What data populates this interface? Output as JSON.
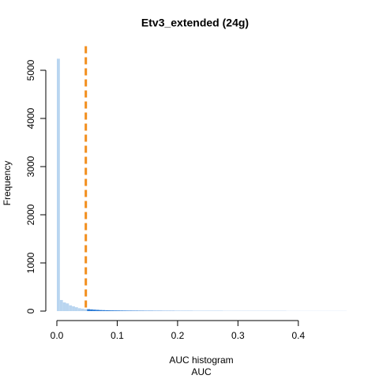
{
  "chart_data": {
    "type": "histogram",
    "title": "Etv3_extended (24g)",
    "xlabel": "AUC histogram",
    "subtitle": "AUC",
    "ylabel": "Frequency",
    "bins": [
      0,
      0.005,
      0.01,
      0.015,
      0.02,
      0.025,
      0.03,
      0.035,
      0.04,
      0.045,
      0.05,
      0.055,
      0.06,
      0.065,
      0.07,
      0.075,
      0.08,
      0.085,
      0.09,
      0.095,
      0.1,
      0.105,
      0.11,
      0.115,
      0.12,
      0.125,
      0.13,
      0.135,
      0.14,
      0.145,
      0.15,
      0.155,
      0.16,
      0.165,
      0.17,
      0.175,
      0.18,
      0.185,
      0.19,
      0.195,
      0.2,
      0.205,
      0.21,
      0.215,
      0.22,
      0.225,
      0.23,
      0.235,
      0.24,
      0.245,
      0.25,
      0.255,
      0.26,
      0.265,
      0.27,
      0.275,
      0.28,
      0.285,
      0.29,
      0.295,
      0.3,
      0.305,
      0.31,
      0.315,
      0.32,
      0.325,
      0.33,
      0.335,
      0.34,
      0.345,
      0.35,
      0.355,
      0.36,
      0.365,
      0.37,
      0.375,
      0.38,
      0.385,
      0.39,
      0.395,
      0.4,
      0.405,
      0.41,
      0.415,
      0.42,
      0.425,
      0.43,
      0.435,
      0.44,
      0.445,
      0.45,
      0.455,
      0.46,
      0.465,
      0.47,
      0.475,
      0.48
    ],
    "values": [
      5240,
      230,
      180,
      160,
      120,
      100,
      80,
      60,
      50,
      40,
      40,
      35,
      30,
      26,
      22,
      20,
      18,
      16,
      15,
      14,
      13,
      12,
      11,
      10,
      10,
      9,
      9,
      8,
      8,
      7,
      7,
      7,
      6,
      6,
      6,
      5,
      5,
      5,
      5,
      4,
      4,
      4,
      4,
      4,
      4,
      3,
      3,
      3,
      3,
      3,
      3,
      3,
      3,
      3,
      3,
      2,
      2,
      2,
      2,
      2,
      2,
      2,
      2,
      2,
      2,
      2,
      2,
      2,
      2,
      2,
      2,
      2,
      2,
      2,
      2,
      2,
      1,
      1,
      1,
      1,
      1,
      1,
      1,
      1,
      1,
      1,
      1,
      1,
      1,
      1,
      1,
      1,
      1,
      1,
      1,
      1
    ],
    "threshold": 0.048,
    "color": "#b9d5f0",
    "color_above": "#2b7bd6",
    "threshold_color": "#f28e1c",
    "xlim": [
      0,
      0.48
    ],
    "ylim": [
      0,
      5500
    ],
    "xticks": [
      {
        "value": 0,
        "label": "0.0"
      },
      0.1,
      0.2,
      0.3,
      0.4
    ],
    "yticks": [
      0,
      1000,
      2000,
      3000,
      4000,
      5000
    ]
  }
}
